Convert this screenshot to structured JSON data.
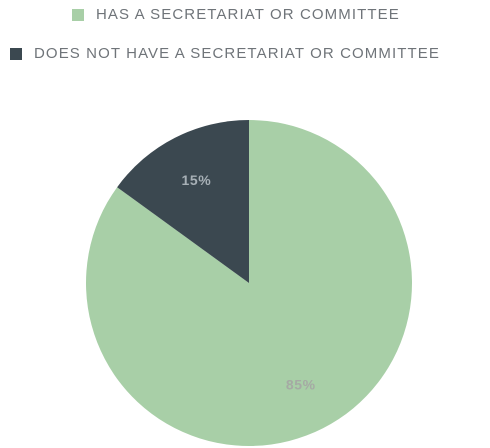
{
  "chart_data": {
    "type": "pie",
    "categories": [
      "HAS A SECRETARIAT OR COMMITTEE",
      "DOES NOT HAVE A SECRETARIAT OR COMMITTEE"
    ],
    "values": [
      85,
      15
    ],
    "value_labels": [
      "85%",
      "15%"
    ],
    "colors": [
      "#a8cfa7",
      "#3b4850"
    ],
    "label_colors": [
      "#a5aaa4",
      "#a7b0b6"
    ],
    "legend_position": "top",
    "title": "",
    "start_angle_deg": 0,
    "direction": "clockwise"
  }
}
